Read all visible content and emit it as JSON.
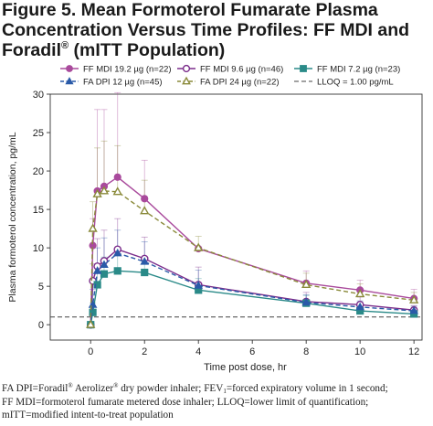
{
  "figure": {
    "title_line1": "Figure 5. Mean Formoterol Fumarate Plasma",
    "title_line2": "Concentration Versus Time Profiles: FF MDI and",
    "title_line3_a": "Foradil",
    "title_line3_reg": "®",
    "title_line3_b": " (mITT Population)"
  },
  "notes": {
    "line1_a": "FA DPI=Foradil",
    "line1_reg": "®",
    "line1_b": " Aerolizer",
    "line1_reg2": "®",
    "line1_c": " dry powder inhaler; FEV",
    "line1_sub": "1",
    "line1_d": "=forced expiratory volume in 1 second;",
    "line2": "FF MDI=formoterol fumarate metered dose inhaler; LLOQ=lower limit of quantification;",
    "line3": "mITT=modified intent-to-treat population"
  },
  "chart_data": {
    "type": "line",
    "xlabel": "Time post dose, hr",
    "ylabel": "Plasma formoterol concentration, pg/mL",
    "xlim": [
      -1.5,
      12.3
    ],
    "ylim": [
      -2,
      30
    ],
    "xticks": [
      0,
      2,
      4,
      6,
      8,
      10,
      12
    ],
    "yticks": [
      0,
      5,
      10,
      15,
      20,
      25,
      30
    ],
    "grid": false,
    "legend_position": "top",
    "lloq": {
      "name": "LLOQ = 1.00 pg/mL",
      "value": 1.0,
      "color": "#444444"
    },
    "series": [
      {
        "name": "FF MDI 19.2 µg (n=22)",
        "color": "#a94a9c",
        "marker": "circle-filled",
        "dash": "solid",
        "x": [
          0,
          0.08,
          0.25,
          0.5,
          1,
          2,
          4,
          8,
          10,
          12
        ],
        "y": [
          0,
          10.3,
          17.4,
          18.0,
          19.2,
          16.4,
          9.9,
          5.4,
          4.5,
          3.4
        ],
        "err": [
          0,
          3.5,
          10.6,
          10.0,
          11.0,
          5.0,
          0.2,
          1.6,
          1.3,
          1.2
        ]
      },
      {
        "name": "FF MDI 9.6 µg (n=46)",
        "color": "#7b2d8b",
        "marker": "circle-open",
        "dash": "solid",
        "x": [
          0,
          0.08,
          0.25,
          0.5,
          1,
          2,
          4,
          8,
          10,
          12
        ],
        "y": [
          0,
          5.7,
          7.6,
          8.3,
          9.8,
          8.6,
          5.2,
          3.0,
          2.6,
          1.9
        ],
        "err": [
          0,
          2.2,
          3.6,
          4.0,
          4.0,
          2.8,
          2.3,
          1.2,
          1.0,
          0.6
        ]
      },
      {
        "name": "FF MDI 7.2 µg (n=23)",
        "color": "#2a8a88",
        "marker": "square-filled",
        "dash": "solid",
        "x": [
          0,
          0.08,
          0.25,
          0.5,
          1,
          2,
          4,
          8,
          10,
          12
        ],
        "y": [
          0,
          1.6,
          5.2,
          6.6,
          7.0,
          6.8,
          4.5,
          2.8,
          1.8,
          1.4
        ],
        "err": [
          0,
          1.2,
          2.2,
          2.2,
          2.5,
          1.6,
          1.5,
          1.0,
          0.6,
          0.4
        ]
      },
      {
        "name": "FA DPI 12 µg (n=45)",
        "color": "#2a5aa8",
        "marker": "triangle-filled",
        "dash": "dashed",
        "x": [
          0,
          0.08,
          0.25,
          0.5,
          1,
          2,
          4,
          8,
          10,
          12
        ],
        "y": [
          0,
          2.6,
          7.0,
          7.8,
          9.3,
          8.2,
          5.1,
          2.9,
          2.3,
          1.8
        ],
        "err": [
          0,
          2.0,
          3.0,
          3.5,
          3.0,
          2.6,
          2.0,
          1.0,
          0.8,
          0.6
        ]
      },
      {
        "name": "FA DPI 24 µg (n=22)",
        "color": "#8a8a3a",
        "marker": "triangle-open",
        "dash": "dashed",
        "x": [
          0,
          0.08,
          0.25,
          0.5,
          1,
          2,
          4,
          8,
          10,
          12
        ],
        "y": [
          0,
          12.5,
          17.0,
          17.4,
          17.3,
          14.8,
          10.0,
          5.2,
          4.0,
          3.2
        ],
        "err": [
          0,
          3.5,
          6.0,
          6.5,
          6.0,
          4.0,
          1.5,
          1.5,
          1.3,
          1.0
        ]
      }
    ]
  }
}
